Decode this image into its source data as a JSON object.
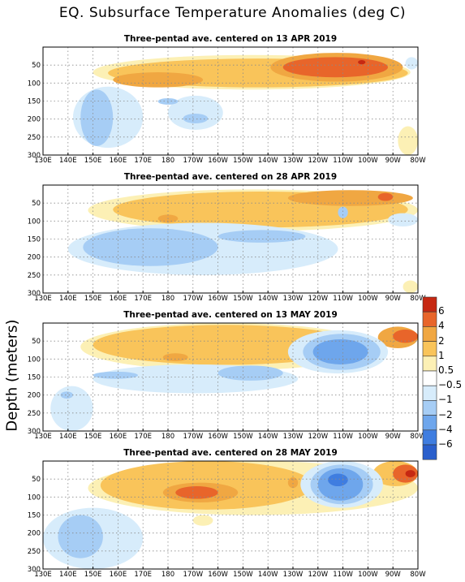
{
  "figure": {
    "title": "EQ. Subsurface Temperature Anomalies (deg C)",
    "ylabel": "Depth (meters)"
  },
  "colors": {
    "neg6": "#2a5fcc",
    "neg4": "#3f7de0",
    "neg2": "#6ea6ec",
    "neg1": "#a6cdf5",
    "neg05": "#d7ecfb",
    "pos05": "#fcf0b5",
    "pos1": "#f9c45a",
    "pos2": "#f0a742",
    "pos4": "#e8652a",
    "pos6": "#c62812",
    "grid": "#8a8a8a"
  },
  "colorbar": {
    "labels": [
      "6",
      "4",
      "2",
      "1",
      "0.5",
      "−0.5",
      "−1",
      "−2",
      "−4",
      "−6"
    ],
    "bins": [
      "pos6",
      "pos4",
      "pos2",
      "pos1",
      "pos05",
      "white",
      "neg05",
      "neg1",
      "neg2",
      "neg4",
      "neg6"
    ]
  },
  "chart_data": [
    {
      "type": "heatmap",
      "title": "Three-pentad ave. centered on 13 APR 2019",
      "xlabel": "",
      "ylabel": "Depth (meters)",
      "x_ticks": [
        "130E",
        "140E",
        "150E",
        "160E",
        "170E",
        "180",
        "170W",
        "160W",
        "150W",
        "140W",
        "130W",
        "120W",
        "110W",
        "100W",
        "90W",
        "80W"
      ],
      "y_ticks": [
        50,
        100,
        150,
        200,
        250,
        300
      ],
      "xlim": [
        130,
        280
      ],
      "ylim": [
        300,
        0
      ],
      "grid": true,
      "features": [
        {
          "level": "pos05",
          "lon": [
            150,
            277
          ],
          "depth": [
            22,
            118
          ]
        },
        {
          "level": "pos1",
          "lon": [
            156,
            276
          ],
          "depth": [
            32,
            112
          ]
        },
        {
          "level": "pos2",
          "lon": [
            158,
            194
          ],
          "depth": [
            70,
            112
          ]
        },
        {
          "level": "pos2",
          "lon": [
            221,
            274
          ],
          "depth": [
            16,
            96
          ]
        },
        {
          "level": "pos4",
          "lon": [
            226,
            268
          ],
          "depth": [
            28,
            84
          ]
        },
        {
          "level": "pos6",
          "lon": [
            256,
            259
          ],
          "depth": [
            36,
            48
          ]
        },
        {
          "level": "neg05",
          "lon": [
            142,
            170
          ],
          "depth": [
            110,
            280
          ]
        },
        {
          "level": "neg1",
          "lon": [
            145,
            158
          ],
          "depth": [
            118,
            275
          ]
        },
        {
          "level": "neg05",
          "lon": [
            180,
            202
          ],
          "depth": [
            135,
            230
          ]
        },
        {
          "level": "neg1",
          "lon": [
            186,
            196
          ],
          "depth": [
            185,
            212
          ]
        },
        {
          "level": "neg1",
          "lon": [
            176,
            184
          ],
          "depth": [
            142,
            160
          ]
        },
        {
          "level": "pos05",
          "lon": [
            272,
            280
          ],
          "depth": [
            220,
            300
          ]
        },
        {
          "level": "neg05",
          "lon": [
            275,
            280
          ],
          "depth": [
            28,
            62
          ]
        }
      ]
    },
    {
      "type": "heatmap",
      "title": "Three-pentad ave. centered on 28 APR 2019",
      "xlabel": "",
      "ylabel": "Depth (meters)",
      "x_ticks": [
        "130E",
        "140E",
        "150E",
        "160E",
        "170E",
        "180",
        "170W",
        "160W",
        "150W",
        "140W",
        "130W",
        "120W",
        "110W",
        "100W",
        "90W",
        "80W"
      ],
      "y_ticks": [
        50,
        100,
        150,
        200,
        250,
        300
      ],
      "xlim": [
        130,
        280
      ],
      "ylim": [
        300,
        0
      ],
      "grid": true,
      "features": [
        {
          "level": "pos05",
          "lon": [
            148,
            280
          ],
          "depth": [
            12,
            128
          ]
        },
        {
          "level": "pos1",
          "lon": [
            158,
            276
          ],
          "depth": [
            18,
            118
          ]
        },
        {
          "level": "pos2",
          "lon": [
            228,
            278
          ],
          "depth": [
            14,
            58
          ]
        },
        {
          "level": "pos2",
          "lon": [
            176,
            184
          ],
          "depth": [
            82,
            104
          ]
        },
        {
          "level": "pos4",
          "lon": [
            264,
            270
          ],
          "depth": [
            22,
            44
          ]
        },
        {
          "level": "neg05",
          "lon": [
            140,
            248
          ],
          "depth": [
            105,
            250
          ]
        },
        {
          "level": "neg1",
          "lon": [
            146,
            200
          ],
          "depth": [
            120,
            225
          ]
        },
        {
          "level": "neg1",
          "lon": [
            200,
            235
          ],
          "depth": [
            125,
            160
          ]
        },
        {
          "level": "neg1",
          "lon": [
            248,
            252
          ],
          "depth": [
            60,
            92
          ]
        },
        {
          "level": "neg05",
          "lon": [
            268,
            280
          ],
          "depth": [
            78,
            115
          ]
        },
        {
          "level": "pos05",
          "lon": [
            274,
            280
          ],
          "depth": [
            265,
            300
          ]
        }
      ]
    },
    {
      "type": "heatmap",
      "title": "Three-pentad ave. centered on 13 MAY 2019",
      "xlabel": "",
      "ylabel": "Depth (meters)",
      "x_ticks": [
        "130E",
        "140E",
        "150E",
        "160E",
        "170E",
        "180",
        "170W",
        "160W",
        "150W",
        "140W",
        "130W",
        "120W",
        "110W",
        "100W",
        "90W",
        "80W"
      ],
      "y_ticks": [
        50,
        100,
        150,
        200,
        250,
        300
      ],
      "xlim": [
        130,
        280
      ],
      "ylim": [
        300,
        0
      ],
      "grid": true,
      "features": [
        {
          "level": "pos05",
          "lon": [
            145,
            262
          ],
          "depth": [
            0,
            132
          ]
        },
        {
          "level": "pos1",
          "lon": [
            150,
            256
          ],
          "depth": [
            5,
            116
          ]
        },
        {
          "level": "pos2",
          "lon": [
            178,
            188
          ],
          "depth": [
            84,
            106
          ]
        },
        {
          "level": "pos2",
          "lon": [
            264,
            280
          ],
          "depth": [
            10,
            70
          ]
        },
        {
          "level": "pos4",
          "lon": [
            270,
            280
          ],
          "depth": [
            18,
            55
          ]
        },
        {
          "level": "neg05",
          "lon": [
            228,
            268
          ],
          "depth": [
            20,
            140
          ]
        },
        {
          "level": "neg1",
          "lon": [
            234,
            265
          ],
          "depth": [
            30,
            130
          ]
        },
        {
          "level": "neg2",
          "lon": [
            238,
            260
          ],
          "depth": [
            45,
            115
          ]
        },
        {
          "level": "neg05",
          "lon": [
            150,
            232
          ],
          "depth": [
            115,
            195
          ]
        },
        {
          "level": "neg1",
          "lon": [
            200,
            226
          ],
          "depth": [
            118,
            160
          ]
        },
        {
          "level": "neg1",
          "lon": [
            150,
            168
          ],
          "depth": [
            135,
            155
          ]
        },
        {
          "level": "neg05",
          "lon": [
            133,
            150
          ],
          "depth": [
            175,
            300
          ]
        },
        {
          "level": "neg1",
          "lon": [
            137,
            142
          ],
          "depth": [
            190,
            210
          ]
        }
      ]
    },
    {
      "type": "heatmap",
      "title": "Three-pentad ave. centered on 28 MAY 2019",
      "xlabel": "",
      "ylabel": "Depth (meters)",
      "x_ticks": [
        "130E",
        "140E",
        "150E",
        "160E",
        "170E",
        "180",
        "170W",
        "160W",
        "150W",
        "140W",
        "130W",
        "120W",
        "110W",
        "100W",
        "90W",
        "80W"
      ],
      "y_ticks": [
        50,
        100,
        150,
        200,
        250,
        300
      ],
      "xlim": [
        130,
        280
      ],
      "ylim": [
        300,
        0
      ],
      "grid": true,
      "features": [
        {
          "level": "pos05",
          "lon": [
            148,
            280
          ],
          "depth": [
            0,
            150
          ]
        },
        {
          "level": "pos1",
          "lon": [
            153,
            238
          ],
          "depth": [
            0,
            135
          ]
        },
        {
          "level": "pos1",
          "lon": [
            262,
            280
          ],
          "depth": [
            0,
            70
          ]
        },
        {
          "level": "pos2",
          "lon": [
            178,
            208
          ],
          "depth": [
            60,
            115
          ]
        },
        {
          "level": "pos4",
          "lon": [
            183,
            200
          ],
          "depth": [
            70,
            105
          ]
        },
        {
          "level": "pos2",
          "lon": [
            228,
            232
          ],
          "depth": [
            45,
            75
          ]
        },
        {
          "level": "pos4",
          "lon": [
            270,
            280
          ],
          "depth": [
            10,
            60
          ]
        },
        {
          "level": "pos6",
          "lon": [
            275,
            279
          ],
          "depth": [
            25,
            45
          ]
        },
        {
          "level": "neg05",
          "lon": [
            233,
            266
          ],
          "depth": [
            0,
            130
          ]
        },
        {
          "level": "neg1",
          "lon": [
            237,
            262
          ],
          "depth": [
            10,
            120
          ]
        },
        {
          "level": "neg2",
          "lon": [
            240,
            258
          ],
          "depth": [
            20,
            110
          ]
        },
        {
          "level": "neg4",
          "lon": [
            244,
            252
          ],
          "depth": [
            35,
            70
          ]
        },
        {
          "level": "neg05",
          "lon": [
            130,
            170
          ],
          "depth": [
            130,
            300
          ]
        },
        {
          "level": "neg1",
          "lon": [
            136,
            154
          ],
          "depth": [
            150,
            270
          ]
        },
        {
          "level": "pos05",
          "lon": [
            190,
            198
          ],
          "depth": [
            150,
            180
          ]
        }
      ]
    }
  ]
}
